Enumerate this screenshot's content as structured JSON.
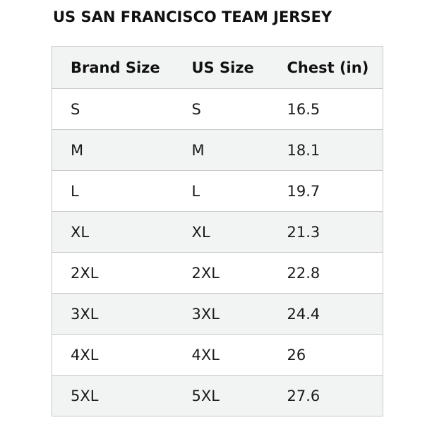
{
  "title": "US SAN FRANCISCO TEAM JERSEY",
  "table": {
    "headers": [
      "Brand Size",
      "US Size",
      "Chest (in)"
    ],
    "rows": [
      [
        "S",
        "S",
        "16.5"
      ],
      [
        "M",
        "M",
        "18.1"
      ],
      [
        "L",
        "L",
        "19.7"
      ],
      [
        "XL",
        "XL",
        "21.3"
      ],
      [
        "2XL",
        "2XL",
        "22.8"
      ],
      [
        "3XL",
        "3XL",
        "24.4"
      ],
      [
        "4XL",
        "4XL",
        "26"
      ],
      [
        "5XL",
        "5XL",
        "27.6"
      ]
    ]
  },
  "colors": {
    "stripe": "#f2f3f3",
    "border": "#c9c9c9",
    "text": "#111111"
  }
}
